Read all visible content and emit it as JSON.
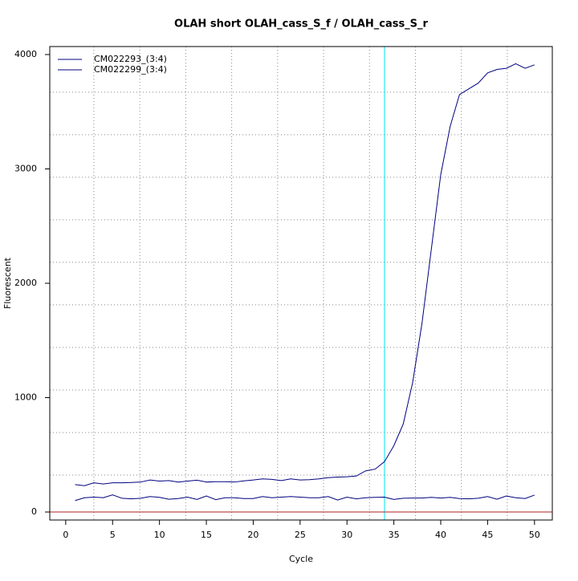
{
  "chart_data": {
    "type": "line",
    "title": "OLAH short OLAH_cass_S_f / OLAH_cass_S_r",
    "x_label": "Cycle",
    "y_label": "Fluorescent",
    "x": [
      1,
      2,
      3,
      4,
      5,
      6,
      7,
      8,
      9,
      10,
      11,
      12,
      13,
      14,
      15,
      16,
      17,
      18,
      19,
      20,
      21,
      22,
      23,
      24,
      25,
      26,
      27,
      28,
      29,
      30,
      31,
      32,
      33,
      34,
      35,
      36,
      37,
      38,
      39,
      40,
      41,
      42,
      43,
      44,
      45,
      46,
      47,
      48,
      49,
      50
    ],
    "series": [
      {
        "name": "CM022293_(3:4)",
        "color": "#000080",
        "values": [
          240,
          230,
          255,
          245,
          255,
          255,
          258,
          262,
          280,
          270,
          275,
          262,
          270,
          278,
          262,
          265,
          265,
          262,
          272,
          280,
          290,
          285,
          275,
          290,
          280,
          283,
          290,
          300,
          305,
          308,
          315,
          360,
          375,
          440,
          580,
          770,
          1130,
          1650,
          2300,
          2950,
          3370,
          3650,
          3700,
          3750,
          3840,
          3870,
          3880,
          3920,
          3880,
          3910
        ]
      },
      {
        "name": "CM022299_(3:4)",
        "color": "#000080",
        "values": [
          100,
          125,
          130,
          125,
          150,
          120,
          115,
          120,
          135,
          128,
          112,
          118,
          130,
          110,
          140,
          108,
          125,
          125,
          118,
          118,
          135,
          125,
          130,
          135,
          130,
          125,
          125,
          135,
          105,
          130,
          115,
          125,
          128,
          130,
          110,
          120,
          122,
          122,
          128,
          122,
          128,
          118,
          115,
          120,
          135,
          112,
          140,
          125,
          118,
          148
        ]
      }
    ],
    "xlim": [
      -1.7,
      51.9
    ],
    "ylim": [
      -70,
      4070
    ],
    "xticks": [
      0,
      5,
      10,
      15,
      20,
      25,
      30,
      35,
      40,
      45,
      50
    ],
    "yticks": [
      0,
      1000,
      2000,
      3000,
      4000
    ],
    "x_grid": [
      3,
      7.9,
      12.8,
      17.7,
      22.6,
      27.5,
      32.4,
      37.3,
      42.2,
      47.1
    ],
    "y_grid": [
      323,
      695,
      1067,
      1439,
      1811,
      2183,
      2555,
      2927,
      3299,
      3671
    ],
    "threshold_x": 34,
    "threshold_color": "#00e5ee",
    "baseline_y": 0,
    "baseline_color": "#b22222",
    "legend": "top-left"
  }
}
